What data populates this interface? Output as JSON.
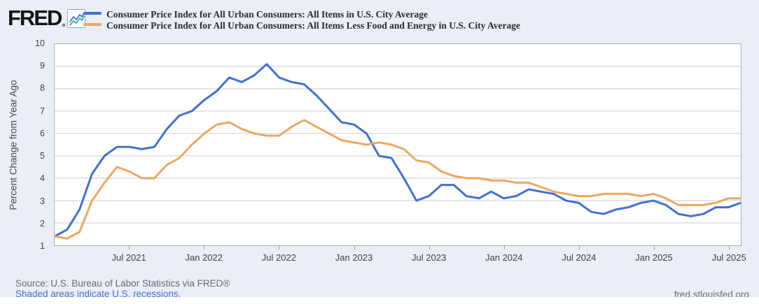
{
  "header": {
    "logo_text": "FRED",
    "legend": [
      {
        "label": "Consumer Price Index for All Urban Consumers: All Items in U.S. City Average",
        "color": "#4070d4"
      },
      {
        "label": "Consumer Price Index for All Urban Consumers: All Items Less Food and Energy in U.S. City Average",
        "color": "#eea761"
      }
    ]
  },
  "chart_data": {
    "type": "line",
    "title": "",
    "xlabel": "",
    "ylabel": "Percent Change from Year Ago",
    "ylim": [
      1,
      10
    ],
    "y_ticks": [
      1,
      2,
      3,
      4,
      5,
      6,
      7,
      8,
      9,
      10
    ],
    "grid": "horizontal",
    "grid_color": "#cccccc",
    "legend_position": "top",
    "x_months": [
      "2021-01",
      "2021-02",
      "2021-03",
      "2021-04",
      "2021-05",
      "2021-06",
      "2021-07",
      "2021-08",
      "2021-09",
      "2021-10",
      "2021-11",
      "2021-12",
      "2022-01",
      "2022-02",
      "2022-03",
      "2022-04",
      "2022-05",
      "2022-06",
      "2022-07",
      "2022-08",
      "2022-09",
      "2022-10",
      "2022-11",
      "2022-12",
      "2023-01",
      "2023-02",
      "2023-03",
      "2023-04",
      "2023-05",
      "2023-06",
      "2023-07",
      "2023-08",
      "2023-09",
      "2023-10",
      "2023-11",
      "2023-12",
      "2024-01",
      "2024-02",
      "2024-03",
      "2024-04",
      "2024-05",
      "2024-06",
      "2024-07",
      "2024-08",
      "2024-09",
      "2024-10",
      "2024-11",
      "2024-12",
      "2025-01",
      "2025-02",
      "2025-03",
      "2025-04",
      "2025-05",
      "2025-06",
      "2025-07",
      "2025-08"
    ],
    "x_ticks": [
      {
        "label": "Jul 2021",
        "month_index": 6
      },
      {
        "label": "Jan 2022",
        "month_index": 12
      },
      {
        "label": "Jul 2022",
        "month_index": 18
      },
      {
        "label": "Jan 2023",
        "month_index": 24
      },
      {
        "label": "Jul 2023",
        "month_index": 30
      },
      {
        "label": "Jan 2024",
        "month_index": 36
      },
      {
        "label": "Jul 2024",
        "month_index": 42
      },
      {
        "label": "Jan 2025",
        "month_index": 48
      },
      {
        "label": "Jul 2025",
        "month_index": 54
      }
    ],
    "series": [
      {
        "name": "Consumer Price Index for All Urban Consumers: All Items in U.S. City Average",
        "color": "#4070d4",
        "values": [
          1.4,
          1.7,
          2.6,
          4.2,
          5.0,
          5.4,
          5.4,
          5.3,
          5.4,
          6.2,
          6.8,
          7.0,
          7.5,
          7.9,
          8.5,
          8.3,
          8.6,
          9.1,
          8.5,
          8.3,
          8.2,
          7.7,
          7.1,
          6.5,
          6.4,
          6.0,
          5.0,
          4.9,
          4.0,
          3.0,
          3.2,
          3.7,
          3.7,
          3.2,
          3.1,
          3.4,
          3.1,
          3.2,
          3.5,
          3.4,
          3.3,
          3.0,
          2.9,
          2.5,
          2.4,
          2.6,
          2.7,
          2.9,
          3.0,
          2.8,
          2.4,
          2.3,
          2.4,
          2.7,
          2.7,
          2.9
        ]
      },
      {
        "name": "Consumer Price Index for All Urban Consumers: All Items Less Food and Energy in U.S. City Average",
        "color": "#eea761",
        "values": [
          1.4,
          1.3,
          1.6,
          3.0,
          3.8,
          4.5,
          4.3,
          4.0,
          4.0,
          4.6,
          4.9,
          5.5,
          6.0,
          6.4,
          6.5,
          6.2,
          6.0,
          5.9,
          5.9,
          6.3,
          6.6,
          6.3,
          6.0,
          5.7,
          5.6,
          5.5,
          5.6,
          5.5,
          5.3,
          4.8,
          4.7,
          4.3,
          4.1,
          4.0,
          4.0,
          3.9,
          3.9,
          3.8,
          3.8,
          3.6,
          3.4,
          3.3,
          3.2,
          3.2,
          3.3,
          3.3,
          3.3,
          3.2,
          3.3,
          3.1,
          2.8,
          2.8,
          2.8,
          2.9,
          3.1,
          3.1
        ]
      }
    ]
  },
  "footer": {
    "source_text": "Source: U.S. Bureau of Labor Statistics via FRED®",
    "recessions_link_text": "Shaded areas indicate U.S. recessions.",
    "site_link_text": "fred.stlouisfed.org"
  }
}
